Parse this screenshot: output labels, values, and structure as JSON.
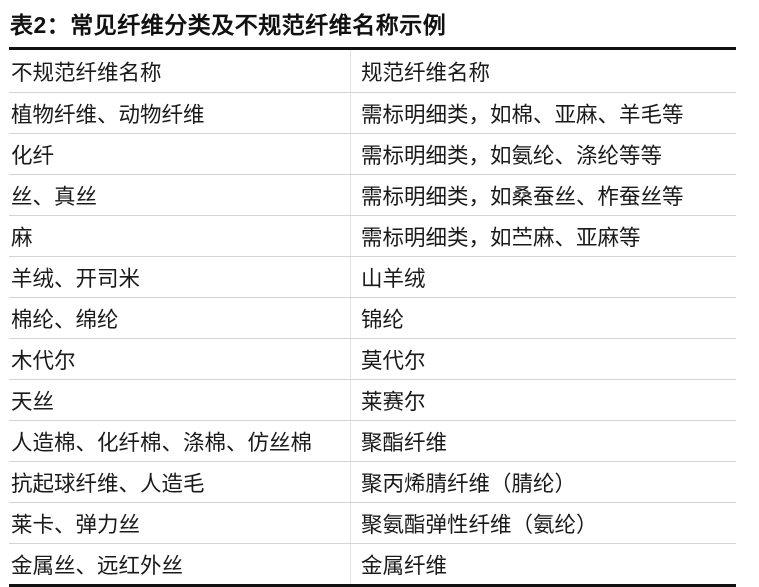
{
  "title": "表2：常见纤维分类及不规范纤维名称示例",
  "table": {
    "headers": [
      "不规范纤维名称",
      "规范纤维名称"
    ],
    "rows": [
      [
        "植物纤维、动物纤维",
        "需标明细类，如棉、亚麻、羊毛等"
      ],
      [
        "化纤",
        "需标明细类，如氨纶、涤纶等等"
      ],
      [
        "丝、真丝",
        "需标明细类，如桑蚕丝、柞蚕丝等"
      ],
      [
        "麻",
        "需标明细类，如苎麻、亚麻等"
      ],
      [
        "羊绒、开司米",
        "山羊绒"
      ],
      [
        "棉纶、绵纶",
        "锦纶"
      ],
      [
        "木代尔",
        "莫代尔"
      ],
      [
        "天丝",
        "莱赛尔"
      ],
      [
        "人造棉、化纤棉、涤棉、仿丝棉",
        "聚酯纤维"
      ],
      [
        "抗起球纤维、人造毛",
        "聚丙烯腈纤维（腈纶）"
      ],
      [
        "莱卡、弹力丝",
        "聚氨酯弹性纤维（氨纶）"
      ],
      [
        "金属丝、远红外丝",
        "金属纤维"
      ]
    ]
  }
}
